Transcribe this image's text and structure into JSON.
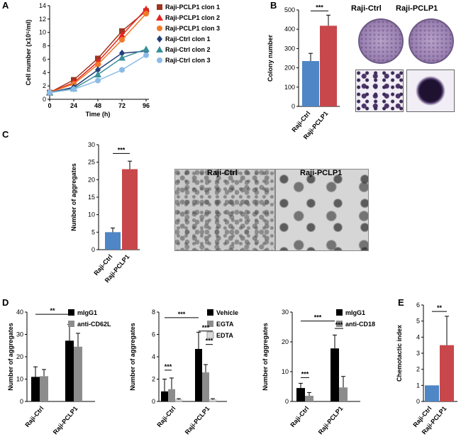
{
  "panels": [
    {
      "letter": "A"
    },
    {
      "letter": "B"
    },
    {
      "letter": "C"
    },
    {
      "letter": "D"
    },
    {
      "letter": "E"
    }
  ],
  "images": {
    "B_left_label": "Raji-Ctrl",
    "B_right_label": "Raji-PCLP1",
    "C_left_label": "Raji-Ctrl",
    "C_right_label": "Raji-PCLP1"
  },
  "chart_data": [
    {
      "panel": "A",
      "type": "line",
      "x": [
        0,
        24,
        48,
        72,
        96
      ],
      "xlabel": "Time (h)",
      "ylabel": "Cell number (x10⁵/ml)",
      "ylim": [
        0,
        14
      ],
      "yticks": [
        0,
        2,
        4,
        6,
        8,
        10,
        12,
        14
      ],
      "series": [
        {
          "name": "Raji-PCLP1 clon 1",
          "color": "#a0341f",
          "marker": "square",
          "values": [
            1.0,
            2.9,
            6.1,
            10.2,
            13.2
          ]
        },
        {
          "name": "Raji-PCLP1 clon 2",
          "color": "#e8231f",
          "marker": "triangle",
          "values": [
            1.0,
            2.5,
            5.6,
            9.6,
            13.5
          ]
        },
        {
          "name": "Raji-PCLP1 clon 3",
          "color": "#f07a2a",
          "marker": "circle",
          "values": [
            1.0,
            2.3,
            5.2,
            8.9,
            12.8
          ]
        },
        {
          "name": "Raji-Ctrl clon 1",
          "color": "#203f7a",
          "marker": "diamond",
          "values": [
            1.0,
            1.8,
            4.4,
            6.9,
            7.2
          ]
        },
        {
          "name": "Raji-Ctrl clon 2",
          "color": "#3a8f9a",
          "marker": "triangle",
          "values": [
            1.0,
            1.6,
            3.7,
            6.2,
            7.5
          ]
        },
        {
          "name": "Raji-Ctrl clon 3",
          "color": "#8bbbe6",
          "marker": "circle",
          "values": [
            1.0,
            1.5,
            2.8,
            4.4,
            6.6
          ]
        }
      ]
    },
    {
      "panel": "B",
      "type": "bar",
      "categories": [
        "Raji-Ctrl",
        "Raji-PCLP1"
      ],
      "values": [
        235,
        418
      ],
      "errors": [
        40,
        55
      ],
      "colors": [
        "#4e86c6",
        "#c8474a"
      ],
      "ylabel": "Colony number",
      "ylim": [
        0,
        500
      ],
      "yticks": [
        0,
        100,
        200,
        300,
        400,
        500
      ],
      "significance": [
        {
          "from": 0,
          "to": 1,
          "label": "***"
        }
      ]
    },
    {
      "panel": "C",
      "type": "bar",
      "categories": [
        "Raji-Ctrl",
        "Raji-PCLP1"
      ],
      "values": [
        5,
        23
      ],
      "errors": [
        1.2,
        2.3
      ],
      "colors": [
        "#4e86c6",
        "#c8474a"
      ],
      "ylabel": "Number of aggregates",
      "ylim": [
        0,
        30
      ],
      "yticks": [
        0,
        5,
        10,
        15,
        20,
        25,
        30
      ],
      "significance": [
        {
          "from": 0,
          "to": 1,
          "label": "***"
        }
      ]
    },
    {
      "panel": "D1",
      "type": "bar",
      "categories": [
        "Raji-Ctrl",
        "Raji-PCLP1"
      ],
      "ylabel": "Number of aggregates",
      "ylim": [
        0,
        40
      ],
      "yticks": [
        0,
        10,
        20,
        30,
        40
      ],
      "series": [
        {
          "name": "mIgG1",
          "color": "#000000",
          "values": [
            11,
            27.2
          ],
          "errors": [
            4.5,
            7.3
          ]
        },
        {
          "name": "anti-CD62L",
          "color": "#8c8c8c",
          "values": [
            11.3,
            24.5
          ],
          "errors": [
            3.0,
            6.0
          ]
        }
      ],
      "significance": [
        {
          "label": "**"
        }
      ]
    },
    {
      "panel": "D2",
      "type": "bar",
      "categories": [
        "Raji-Ctrl",
        "Raji-PCLP1"
      ],
      "ylabel": "Number of aggregates",
      "ylim": [
        0,
        8
      ],
      "yticks": [
        0,
        2,
        4,
        6,
        8
      ],
      "series": [
        {
          "name": "Vehicle",
          "color": "#000000",
          "values": [
            0.9,
            4.7
          ],
          "errors": [
            1.1,
            1.5
          ]
        },
        {
          "name": "EGTA",
          "color": "#8c8c8c",
          "values": [
            1.1,
            2.6
          ],
          "errors": [
            1.0,
            0.7
          ]
        },
        {
          "name": "EDTA",
          "color": "#d9d9d9",
          "values": [
            0.15,
            0.15
          ],
          "errors": [
            0.1,
            0.1
          ]
        }
      ],
      "significance": [
        {
          "label": "***"
        },
        {
          "label": "***"
        },
        {
          "label": "***"
        },
        {
          "label": "***"
        }
      ]
    },
    {
      "panel": "D3",
      "type": "bar",
      "categories": [
        "Raji-Ctrl",
        "Raji-PCLP1"
      ],
      "ylabel": "Number of aggregates",
      "ylim": [
        0,
        30
      ],
      "yticks": [
        0,
        10,
        20,
        30
      ],
      "series": [
        {
          "name": "mIgG1",
          "color": "#000000",
          "values": [
            4.5,
            17.8
          ],
          "errors": [
            1.6,
            4.5
          ]
        },
        {
          "name": "anti-CD18",
          "color": "#8c8c8c",
          "values": [
            1.9,
            4.7
          ],
          "errors": [
            1.1,
            3.7
          ]
        }
      ],
      "significance": [
        {
          "label": "***"
        },
        {
          "label": "***"
        },
        {
          "label": "***"
        }
      ]
    },
    {
      "panel": "E",
      "type": "bar",
      "categories": [
        "Raji-Ctrl",
        "Raji-PCLP1"
      ],
      "values": [
        1.0,
        3.5
      ],
      "errors": [
        0,
        1.8
      ],
      "colors": [
        "#4e86c6",
        "#c8474a"
      ],
      "ylabel": "Chemotactic index",
      "ylim": [
        0,
        6
      ],
      "yticks": [
        0,
        1,
        2,
        3,
        4,
        5,
        6
      ],
      "significance": [
        {
          "from": 0,
          "to": 1,
          "label": "**"
        }
      ]
    }
  ]
}
